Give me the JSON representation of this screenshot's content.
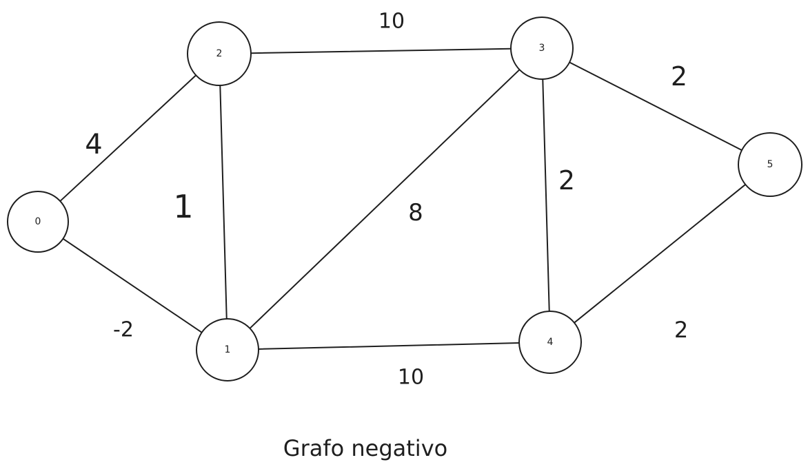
{
  "nodes": [
    {
      "id": "0",
      "label": "0"
    },
    {
      "id": "1",
      "label": "1"
    },
    {
      "id": "2",
      "label": "2"
    },
    {
      "id": "3",
      "label": "3"
    },
    {
      "id": "4",
      "label": "4"
    },
    {
      "id": "5",
      "label": "5"
    }
  ],
  "edges": [
    {
      "from": "0",
      "to": "2",
      "weight": "4"
    },
    {
      "from": "0",
      "to": "1",
      "weight": "-2"
    },
    {
      "from": "2",
      "to": "1",
      "weight": "1"
    },
    {
      "from": "2",
      "to": "3",
      "weight": "10"
    },
    {
      "from": "1",
      "to": "3",
      "weight": "8"
    },
    {
      "from": "1",
      "to": "4",
      "weight": "10"
    },
    {
      "from": "3",
      "to": "4",
      "weight": "2"
    },
    {
      "from": "3",
      "to": "5",
      "weight": "2"
    },
    {
      "from": "4",
      "to": "5",
      "weight": "2"
    }
  ],
  "caption": "Grafo negativo"
}
